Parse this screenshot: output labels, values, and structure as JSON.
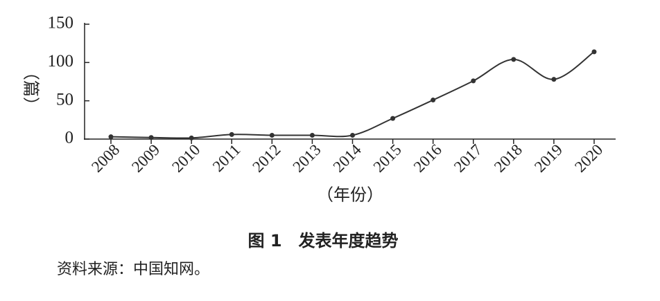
{
  "chart_data": {
    "type": "line",
    "title": "图 1　发表年度趋势",
    "source": "资料来源：中国知网。",
    "x_label": "（年份）",
    "y_label": "（篇）",
    "categories": [
      "2008",
      "2009",
      "2010",
      "2011",
      "2012",
      "2013",
      "2014",
      "2015",
      "2016",
      "2017",
      "2018",
      "2019",
      "2020"
    ],
    "values": [
      3,
      2,
      1.5,
      6,
      5,
      5,
      5,
      27,
      51,
      76,
      104,
      78,
      114
    ],
    "color": "#333333",
    "ylim": [
      0,
      150
    ],
    "yticks": [
      0,
      50,
      100,
      150
    ]
  }
}
